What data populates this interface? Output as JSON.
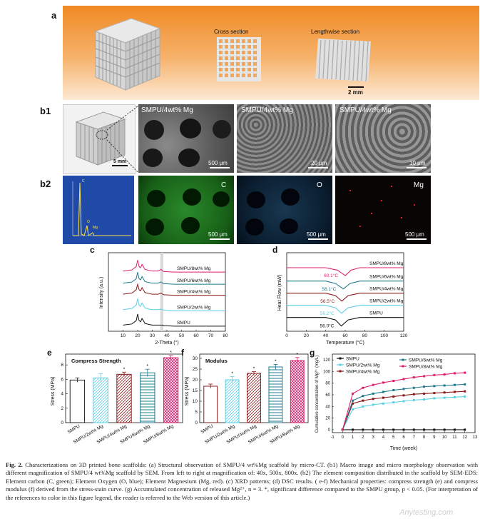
{
  "panel_a": {
    "label": "a",
    "cross_section": "Cross section",
    "lengthwise_section": "Lengthwise section",
    "scale": "2 mm",
    "background_top": "#f08a24",
    "background_bottom": "#fce6cf"
  },
  "panel_b1": {
    "label": "b1",
    "macro_scale": "5 mm",
    "images": [
      {
        "title": "SMPU/4wt% Mg",
        "scale": "500 μm"
      },
      {
        "title": "SMPU/4wt% Mg",
        "scale": "20 μm"
      },
      {
        "title": "SMPU/4wt% Mg",
        "scale": "10 μm"
      }
    ]
  },
  "panel_b2": {
    "label": "b2",
    "eds_peaks": [
      "C",
      "O",
      "Mg"
    ],
    "maps": [
      {
        "element": "C",
        "scale": "500 μm",
        "color": "#2fae2f"
      },
      {
        "element": "O",
        "scale": "500 μm",
        "color": "#3a8fd6"
      },
      {
        "element": "Mg",
        "scale": "500 μm",
        "color": "#e02020"
      }
    ]
  },
  "chart_data": [
    {
      "panel": "c",
      "type": "line",
      "xlabel": "2-Theta (°)",
      "ylabel": "Intensity (a.u.)",
      "xlim": [
        0,
        80
      ],
      "xticks": [
        10,
        20,
        30,
        40,
        50,
        60,
        70,
        80
      ],
      "series": [
        {
          "name": "SMPU/8wt% Mg",
          "color": "#e0206e",
          "x": [
            10,
            16,
            19,
            20,
            21,
            22,
            23,
            25,
            28,
            30,
            34,
            36,
            37,
            38,
            45,
            60,
            80
          ],
          "y": [
            5.2,
            5.3,
            5.6,
            6.2,
            5.6,
            5.5,
            5.8,
            5.35,
            5.25,
            5.2,
            5.2,
            5.35,
            5.2,
            5.15,
            5.1,
            5.1,
            5.1
          ]
        },
        {
          "name": "SMPU/6wt% Mg",
          "color": "#1f7a8c",
          "x": [
            10,
            16,
            19,
            20,
            21,
            22,
            23,
            25,
            28,
            30,
            34,
            36,
            37,
            38,
            45,
            60,
            80
          ],
          "y": [
            4.1,
            4.2,
            4.5,
            5.1,
            4.5,
            4.4,
            4.7,
            4.25,
            4.15,
            4.1,
            4.1,
            4.22,
            4.1,
            4.05,
            4.0,
            4.0,
            4.0
          ]
        },
        {
          "name": "SMPU/4wt% Mg",
          "color": "#8b1a1a",
          "x": [
            10,
            16,
            19,
            20,
            21,
            22,
            23,
            25,
            28,
            30,
            34,
            36,
            37,
            38,
            45,
            60,
            80
          ],
          "y": [
            3.1,
            3.2,
            3.5,
            4.0,
            3.5,
            3.4,
            3.7,
            3.25,
            3.15,
            3.1,
            3.1,
            3.2,
            3.1,
            3.05,
            3.0,
            3.0,
            3.0
          ]
        },
        {
          "name": "SMPU/2wt% Mg",
          "color": "#5ad0e6",
          "x": [
            10,
            16,
            19,
            20,
            21,
            22,
            23,
            25,
            28,
            30,
            34,
            36,
            37,
            38,
            45,
            60,
            80
          ],
          "y": [
            1.7,
            1.8,
            2.1,
            2.7,
            2.1,
            2.0,
            2.3,
            1.85,
            1.75,
            1.7,
            1.7,
            1.75,
            1.7,
            1.65,
            1.6,
            1.6,
            1.6
          ]
        },
        {
          "name": "SMPU",
          "color": "#111111",
          "x": [
            10,
            16,
            19,
            20,
            21,
            22,
            23,
            25,
            28,
            30,
            34,
            36,
            37,
            38,
            45,
            60,
            80
          ],
          "y": [
            0.3,
            0.4,
            0.7,
            1.3,
            0.7,
            0.6,
            0.9,
            0.45,
            0.35,
            0.3,
            0.3,
            0.3,
            0.3,
            0.25,
            0.2,
            0.2,
            0.2
          ]
        }
      ]
    },
    {
      "panel": "d",
      "type": "line",
      "xlabel": "Temperature (°C)",
      "ylabel": "Heat Flow (mW)",
      "xlim": [
        0,
        120
      ],
      "xticks": [
        0,
        20,
        40,
        60,
        80,
        100,
        120
      ],
      "annotations": [
        "60.1°C",
        "58.1°C",
        "56.5°C",
        "56.2°C",
        "56.0°C"
      ],
      "series": [
        {
          "name": "SMPU/8wt% Mg",
          "color": "#e0206e",
          "x": [
            0,
            40,
            52,
            60.1,
            66,
            75,
            120
          ],
          "y": [
            5.0,
            5.0,
            4.8,
            4.35,
            4.8,
            5.0,
            5.0
          ]
        },
        {
          "name": "SMPU/6wt% Mg",
          "color": "#1f7a8c",
          "x": [
            0,
            40,
            50,
            58.1,
            65,
            75,
            120
          ],
          "y": [
            3.9,
            3.9,
            3.7,
            3.25,
            3.7,
            3.9,
            3.9
          ]
        },
        {
          "name": "SMPU/4wt% Mg",
          "color": "#8b1a1a",
          "x": [
            0,
            40,
            50,
            56.5,
            63,
            75,
            120
          ],
          "y": [
            2.9,
            2.9,
            2.7,
            2.25,
            2.7,
            2.9,
            2.9
          ]
        },
        {
          "name": "SMPU/2wt% Mg",
          "color": "#5ad0e6",
          "x": [
            0,
            40,
            50,
            56.2,
            63,
            75,
            120
          ],
          "y": [
            1.9,
            1.9,
            1.7,
            1.25,
            1.7,
            1.9,
            1.9
          ]
        },
        {
          "name": "SMPU",
          "color": "#111111",
          "x": [
            0,
            40,
            50,
            56.0,
            63,
            75,
            120
          ],
          "y": [
            0.9,
            0.9,
            0.7,
            0.2,
            0.7,
            0.9,
            0.9
          ]
        }
      ]
    },
    {
      "panel": "e",
      "type": "bar",
      "title": "Compress Strength",
      "ylabel": "Stress (MPa)",
      "ylim": [
        0,
        9.5
      ],
      "yticks": [
        0,
        2,
        4,
        6,
        8
      ],
      "categories": [
        "SMPU",
        "SMPU/2wt% Mg",
        "SMPU/4wt% Mg",
        "SMPU/6wt% Mg",
        "SMPU/8wt% Mg"
      ],
      "values": [
        5.9,
        6.2,
        6.7,
        6.9,
        9.0
      ],
      "errors": [
        0.3,
        0.6,
        0.3,
        0.5,
        0.3
      ],
      "significant": [
        false,
        false,
        true,
        true,
        true
      ],
      "colors": [
        "#222222",
        "#5ad0e6",
        "#8b1a1a",
        "#1f7a8c",
        "#e0206e"
      ]
    },
    {
      "panel": "f",
      "type": "bar",
      "title": "Modulus",
      "ylabel": "Stress (MPa)",
      "ylim": [
        0,
        32
      ],
      "yticks": [
        0,
        5,
        10,
        15,
        20,
        25,
        30
      ],
      "categories": [
        "SMPU",
        "SMPU/2wt% Mg",
        "SMPU/4wt% Mg",
        "SMPU/6wt% Mg",
        "SMPU/8wt% Mg"
      ],
      "values": [
        17.0,
        20.0,
        23.0,
        26.0,
        29.0
      ],
      "errors": [
        1.0,
        1.5,
        0.8,
        1.2,
        1.4
      ],
      "significant": [
        false,
        true,
        true,
        true,
        true
      ],
      "colors": [
        "#8b1a1a",
        "#5ad0e6",
        "#8b1a1a",
        "#1f7a8c",
        "#e0206e"
      ]
    },
    {
      "panel": "g",
      "type": "line",
      "xlabel": "Time (week)",
      "ylabel": "Cumulative concentration of Mg²⁺ (mg/L)",
      "xlim": [
        -1,
        13
      ],
      "ylim": [
        -5,
        130
      ],
      "xticks": [
        -1,
        0,
        1,
        2,
        3,
        4,
        5,
        6,
        7,
        8,
        9,
        10,
        11,
        12,
        13
      ],
      "yticks": [
        0,
        20,
        40,
        60,
        80,
        100,
        120
      ],
      "legend": "top",
      "series": [
        {
          "name": "SMPU",
          "color": "#111111",
          "x": [
            0,
            1,
            2,
            3,
            4,
            5,
            6,
            7,
            8,
            9,
            10,
            11,
            12
          ],
          "y": [
            0,
            0,
            0,
            0,
            0,
            0,
            0,
            0,
            0,
            0,
            0,
            0,
            0
          ]
        },
        {
          "name": "SMPU/2wt% Mg",
          "color": "#5ad0e6",
          "x": [
            0,
            1,
            2,
            3,
            4,
            5,
            6,
            7,
            8,
            9,
            10,
            11,
            12
          ],
          "y": [
            0,
            35,
            40,
            43,
            45,
            47,
            49,
            51,
            52,
            54,
            55,
            56,
            57
          ]
        },
        {
          "name": "SMPU/4wt% Mg",
          "color": "#8b1a1a",
          "x": [
            0,
            1,
            2,
            3,
            4,
            5,
            6,
            7,
            8,
            9,
            10,
            11,
            12
          ],
          "y": [
            0,
            45,
            50,
            53,
            55,
            57,
            59,
            61,
            62,
            63,
            64,
            65,
            66
          ]
        },
        {
          "name": "SMPU/6wt% Mg",
          "color": "#1f7a8c",
          "x": [
            0,
            1,
            2,
            3,
            4,
            5,
            6,
            7,
            8,
            9,
            10,
            11,
            12
          ],
          "y": [
            0,
            50,
            58,
            62,
            65,
            68,
            70,
            72,
            74,
            75,
            76,
            77,
            78
          ]
        },
        {
          "name": "SMPU/8wt% Mg",
          "color": "#e0206e",
          "x": [
            0,
            1,
            2,
            3,
            4,
            5,
            6,
            7,
            8,
            9,
            10,
            11,
            12
          ],
          "y": [
            0,
            62,
            72,
            77,
            81,
            84,
            87,
            90,
            92,
            94,
            95,
            97,
            98
          ]
        }
      ]
    }
  ],
  "caption": {
    "fig": "Fig. 2.",
    "text": " Characterizations on 3D printed bone scaffolds: (a) Structural observation of SMPU/4 wt%Mg scaffold by micro-CT. (b1) Macro image and micro morphology observation with different magnification of SMPU/4 wt%Mg scaffold by SEM. From left to right at magnification of: 40x, 500x, 800x. (b2) The element composition distributed in the scaffold by SEM-EDS: Element carbon (C, green); Element Oxygen (O, blue); Element Magnesium (Mg, red). (c) XRD patterns; (d) DSC results. ( e-f) Mechanical properties: compress strength (e) and compress modulus (f) derived from the stress-stain curve. (g) Accumulated concentration of released Mg²⁺, n = 3. *, significant difference compared to the SMPU group, p < 0.05. (For interpretation of the references to color in this figure legend, the reader is referred to the Web version of this article.)"
  },
  "watermark": "Anytesting.com"
}
